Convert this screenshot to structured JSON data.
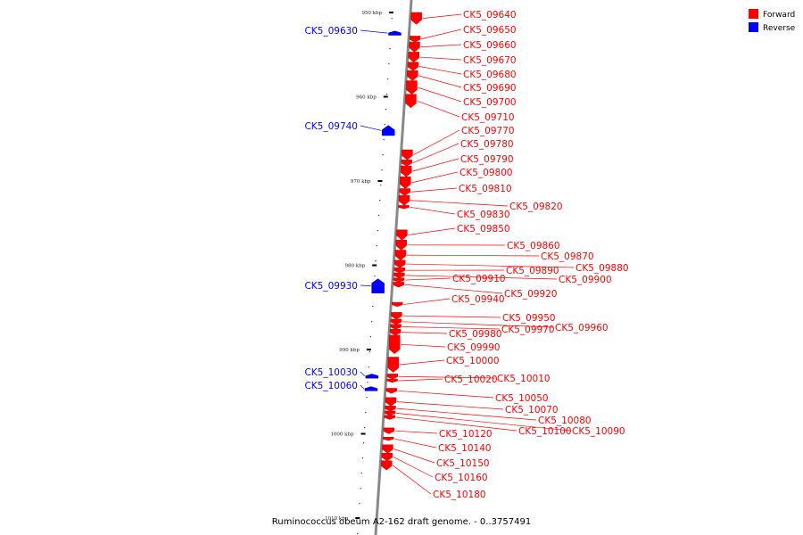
{
  "caption": "Ruminococcus obeum A2-162 draft genome. - 0..3757491",
  "colors": {
    "forward": "#ff0000",
    "reverse": "#0000ff",
    "backbone": "#888888"
  },
  "legend": [
    {
      "label": "Forward",
      "strand": "forward"
    },
    {
      "label": "Reverse",
      "strand": "reverse"
    }
  ],
  "ticks": [
    {
      "label": "950 kbp",
      "pos": 950000
    },
    {
      "label": "960 kbp",
      "pos": 960000
    },
    {
      "label": "970 kbp",
      "pos": 970000
    },
    {
      "label": "980 kbp",
      "pos": 980000
    },
    {
      "label": "990 kbp",
      "pos": 990000
    },
    {
      "label": "1000 kbp",
      "pos": 1000000
    },
    {
      "label": "1010 kbp",
      "pos": 1010000
    }
  ],
  "genes": [
    {
      "name": "CK5_09630",
      "strand": "reverse",
      "start": 952200,
      "end": 952700
    },
    {
      "name": "CK5_09640",
      "strand": "forward",
      "start": 950000,
      "end": 951400
    },
    {
      "name": "CK5_09650",
      "strand": "forward",
      "start": 952800,
      "end": 953500
    },
    {
      "name": "CK5_09660",
      "strand": "forward",
      "start": 953500,
      "end": 954700
    },
    {
      "name": "CK5_09670",
      "strand": "forward",
      "start": 954700,
      "end": 955900
    },
    {
      "name": "CK5_09680",
      "strand": "forward",
      "start": 955900,
      "end": 956900
    },
    {
      "name": "CK5_09690",
      "strand": "forward",
      "start": 956900,
      "end": 958100
    },
    {
      "name": "CK5_09700",
      "strand": "forward",
      "start": 958100,
      "end": 959700
    },
    {
      "name": "CK5_09710",
      "strand": "forward",
      "start": 959700,
      "end": 961300
    },
    {
      "name": "CK5_09740",
      "strand": "reverse",
      "start": 963400,
      "end": 964600
    },
    {
      "name": "CK5_09770",
      "strand": "forward",
      "start": 966300,
      "end": 967500
    },
    {
      "name": "CK5_09780",
      "strand": "forward",
      "start": 967500,
      "end": 968200
    },
    {
      "name": "CK5_09790",
      "strand": "forward",
      "start": 968200,
      "end": 969500
    },
    {
      "name": "CK5_09800",
      "strand": "forward",
      "start": 969500,
      "end": 970900
    },
    {
      "name": "CK5_09810",
      "strand": "forward",
      "start": 970900,
      "end": 971700
    },
    {
      "name": "CK5_09820",
      "strand": "forward",
      "start": 971700,
      "end": 972900
    },
    {
      "name": "CK5_09830",
      "strand": "forward",
      "start": 972900,
      "end": 973300
    },
    {
      "name": "CK5_09850",
      "strand": "forward",
      "start": 975800,
      "end": 977000
    },
    {
      "name": "CK5_09860",
      "strand": "forward",
      "start": 977000,
      "end": 978200
    },
    {
      "name": "CK5_09870",
      "strand": "forward",
      "start": 978200,
      "end": 979400
    },
    {
      "name": "CK5_09880",
      "strand": "forward",
      "start": 979400,
      "end": 980300
    },
    {
      "name": "CK5_09890",
      "strand": "forward",
      "start": 980300,
      "end": 980900
    },
    {
      "name": "CK5_09900",
      "strand": "forward",
      "start": 980900,
      "end": 981500
    },
    {
      "name": "CK5_09910",
      "strand": "forward",
      "start": 981500,
      "end": 982000
    },
    {
      "name": "CK5_09920",
      "strand": "forward",
      "start": 982000,
      "end": 982600
    },
    {
      "name": "CK5_09930",
      "strand": "reverse",
      "start": 981600,
      "end": 983300
    },
    {
      "name": "CK5_09940",
      "strand": "forward",
      "start": 984400,
      "end": 984900
    },
    {
      "name": "CK5_09950",
      "strand": "forward",
      "start": 985600,
      "end": 986400
    },
    {
      "name": "CK5_09960",
      "strand": "forward",
      "start": 986400,
      "end": 987000
    },
    {
      "name": "CK5_09970",
      "strand": "forward",
      "start": 987000,
      "end": 987600
    },
    {
      "name": "CK5_09980",
      "strand": "forward",
      "start": 987600,
      "end": 988300
    },
    {
      "name": "CK5_09990",
      "strand": "forward",
      "start": 988300,
      "end": 990500
    },
    {
      "name": "CK5_10000",
      "strand": "forward",
      "start": 990900,
      "end": 992700
    },
    {
      "name": "CK5_10010",
      "strand": "forward",
      "start": 992900,
      "end": 993500
    },
    {
      "name": "CK5_10020",
      "strand": "forward",
      "start": 993500,
      "end": 993900
    },
    {
      "name": "CK5_10030",
      "strand": "reverse",
      "start": 992900,
      "end": 993400
    },
    {
      "name": "CK5_10050",
      "strand": "forward",
      "start": 994600,
      "end": 995200
    },
    {
      "name": "CK5_10060",
      "strand": "reverse",
      "start": 994400,
      "end": 994900
    },
    {
      "name": "CK5_10070",
      "strand": "forward",
      "start": 995700,
      "end": 996700
    },
    {
      "name": "CK5_10080",
      "strand": "forward",
      "start": 996700,
      "end": 997300
    },
    {
      "name": "CK5_10090",
      "strand": "forward",
      "start": 997300,
      "end": 997800
    },
    {
      "name": "CK5_10100",
      "strand": "forward",
      "start": 997800,
      "end": 998300
    },
    {
      "name": "CK5_10120",
      "strand": "forward",
      "start": 999300,
      "end": 1000000
    },
    {
      "name": "CK5_10140",
      "strand": "forward",
      "start": 1000400,
      "end": 1000800
    },
    {
      "name": "CK5_10150",
      "strand": "forward",
      "start": 1001300,
      "end": 1002300
    },
    {
      "name": "CK5_10160",
      "strand": "forward",
      "start": 1002300,
      "end": 1003200
    },
    {
      "name": "CK5_10180",
      "strand": "forward",
      "start": 1003200,
      "end": 1004300
    }
  ]
}
